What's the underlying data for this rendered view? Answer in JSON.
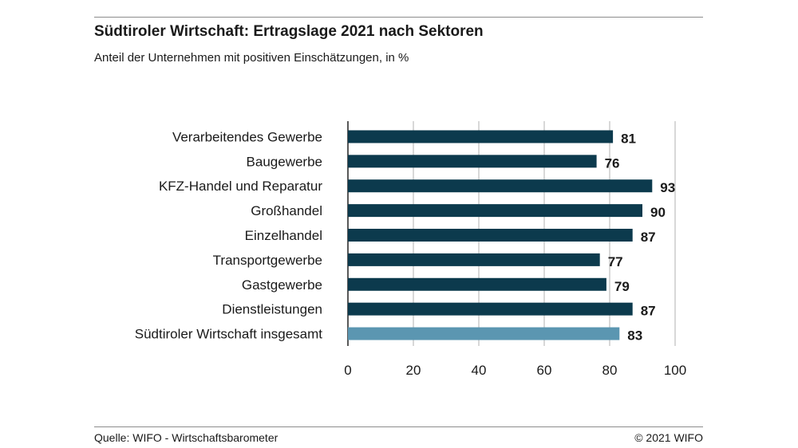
{
  "header": {
    "title": "Südtiroler Wirtschaft: Ertragslage 2021 nach Sektoren",
    "subtitle": "Anteil der Unternehmen mit positiven Einschätzungen, in %"
  },
  "footer": {
    "source": "Quelle: WIFO - Wirtschaftsbarometer",
    "copyright": "© 2021 WIFO"
  },
  "colors": {
    "bar": "#0c3a4d",
    "total_bar": "#5b96b1",
    "grid": "#b0b0b0"
  },
  "chart_data": {
    "type": "bar",
    "orientation": "horizontal",
    "title": "Südtiroler Wirtschaft: Ertragslage 2021 nach Sektoren",
    "subtitle": "Anteil der Unternehmen mit positiven Einschätzungen, in %",
    "categories": [
      "Verarbeitendes Gewerbe",
      "Baugewerbe",
      "KFZ-Handel und Reparatur",
      "Großhandel",
      "Einzelhandel",
      "Transportgewerbe",
      "Gastgewerbe",
      "Dienstleistungen",
      "Südtiroler Wirtschaft insgesamt"
    ],
    "values": [
      81,
      76,
      93,
      90,
      87,
      77,
      79,
      87,
      83
    ],
    "highlight_index": 8,
    "xlim": [
      0,
      100
    ],
    "xticks": [
      0,
      20,
      40,
      60,
      80,
      100
    ],
    "grid": true
  }
}
